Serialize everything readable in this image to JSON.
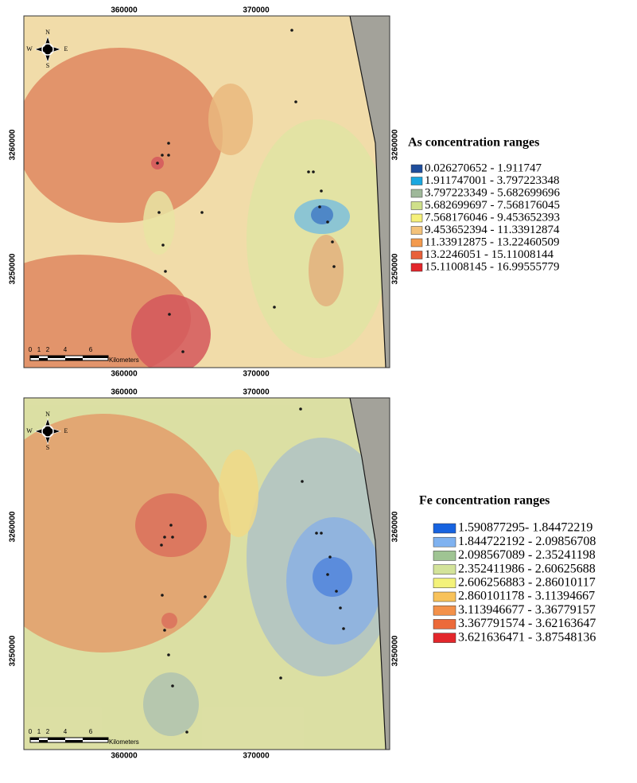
{
  "maps": [
    {
      "x_labels": [
        "360000",
        "370000"
      ],
      "y_labels": [
        "3260000",
        "3250000"
      ],
      "compass": [
        "N",
        "W",
        "E",
        "S"
      ],
      "scale_labels": [
        "0",
        "1",
        "2",
        "4",
        "6"
      ],
      "scale_unit": "Kilometers",
      "legend": {
        "title": "As concentration ranges",
        "entries": [
          {
            "label": "0.026270652 - 1.911747",
            "color": "#1f4e9c"
          },
          {
            "label": "1.911747001 - 3.797223348",
            "color": "#1aa7e0"
          },
          {
            "label": "3.797223349 - 5.682699696",
            "color": "#9fb89a"
          },
          {
            "label": "5.682699697 - 7.568176045",
            "color": "#cfe08a"
          },
          {
            "label": "7.568176046 - 9.453652393",
            "color": "#f5f07a"
          },
          {
            "label": "9.453652394 - 11.33912874",
            "color": "#f3c27a"
          },
          {
            "label": "11.33912875 - 13.22460509",
            "color": "#f39a4e"
          },
          {
            "label": "13.2246051 - 15.11008144",
            "color": "#e8603a"
          },
          {
            "label": "15.11008145 - 16.99555779",
            "color": "#e3262b"
          }
        ]
      }
    },
    {
      "x_labels": [
        "360000",
        "370000"
      ],
      "y_labels": [
        "3260000",
        "3250000"
      ],
      "compass": [
        "N",
        "W",
        "E",
        "S"
      ],
      "scale_labels": [
        "0",
        "1",
        "2",
        "4",
        "6"
      ],
      "scale_unit": "Kilometers",
      "legend": {
        "title": "Fe concentration ranges",
        "entries": [
          {
            "label": "1.590877295- 1.84472219",
            "color": "#1763e0"
          },
          {
            "label": "1.844722192 - 2.09856708",
            "color": "#7fb2f0"
          },
          {
            "label": "2.098567089 - 2.35241198",
            "color": "#9fc493"
          },
          {
            "label": "2.352411986 - 2.60625688",
            "color": "#d3e39a"
          },
          {
            "label": "2.606256883 - 2.86010117",
            "color": "#f3f27a"
          },
          {
            "label": "2.860101178 - 3.11394667",
            "color": "#f8c25a"
          },
          {
            "label": "3.113946677 - 3.36779157",
            "color": "#f3914a"
          },
          {
            "label": "3.367791574 - 3.62163647",
            "color": "#ec6a3a"
          },
          {
            "label": "3.621636471 - 3.87548136",
            "color": "#e3262b"
          }
        ]
      }
    }
  ]
}
